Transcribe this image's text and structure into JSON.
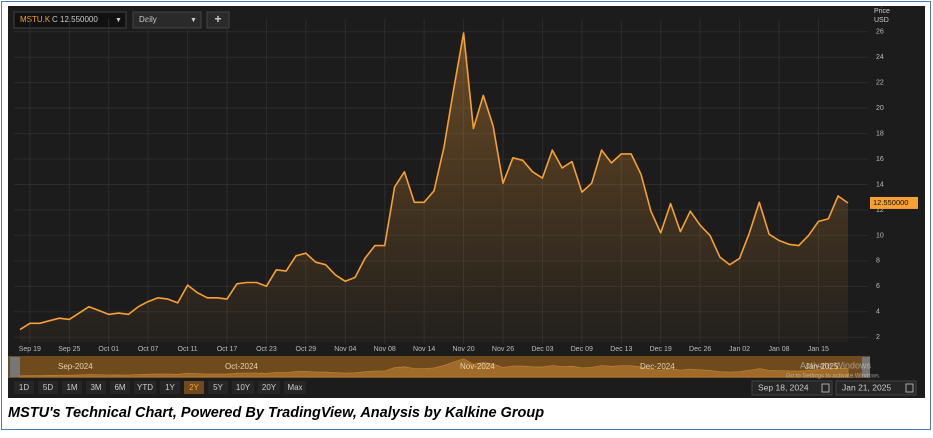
{
  "chart_data": {
    "type": "line",
    "categories": [
      null,
      "Sep 19",
      null,
      null,
      null,
      "Sep 25",
      null,
      null,
      null,
      "Oct 01",
      null,
      null,
      null,
      "Oct 07",
      null,
      null,
      null,
      "Oct 11",
      null,
      null,
      null,
      "Oct 17",
      null,
      null,
      null,
      "Oct 23",
      null,
      null,
      null,
      "Oct 29",
      null,
      null,
      null,
      "Nov 04",
      null,
      null,
      null,
      "Nov 08",
      null,
      null,
      null,
      "Nov 14",
      null,
      null,
      null,
      "Nov 20",
      null,
      null,
      null,
      "Nov 26",
      null,
      null,
      null,
      "Dec 03",
      null,
      null,
      null,
      "Dec 09",
      null,
      null,
      null,
      "Dec 13",
      null,
      null,
      null,
      "Dec 19",
      null,
      null,
      null,
      "Dec 26",
      null,
      null,
      null,
      "Jan 02",
      null,
      null,
      null,
      "Jan 08",
      null,
      null,
      null,
      "Jan 15",
      null,
      null,
      null
    ],
    "values": [
      2.6,
      3.1,
      3.1,
      3.3,
      3.5,
      3.4,
      3.9,
      4.4,
      4.1,
      3.8,
      3.9,
      3.8,
      4.4,
      4.8,
      5.1,
      5.0,
      4.7,
      6.1,
      5.5,
      5.1,
      5.1,
      5.0,
      6.2,
      6.3,
      6.3,
      6.0,
      7.3,
      7.2,
      8.4,
      8.6,
      7.9,
      7.7,
      6.9,
      6.4,
      6.7,
      8.2,
      9.2,
      9.2,
      13.8,
      15.0,
      12.6,
      12.6,
      13.5,
      16.9,
      21.5,
      25.9,
      18.4,
      21.0,
      18.6,
      14.1,
      16.1,
      15.9,
      15.0,
      14.5,
      16.7,
      15.3,
      15.8,
      13.4,
      14.1,
      16.7,
      15.7,
      16.4,
      16.4,
      14.8,
      11.9,
      10.2,
      12.5,
      10.3,
      11.9,
      10.8,
      10.0,
      8.3,
      7.7,
      8.2,
      10.2,
      12.6,
      10.1,
      9.6,
      9.3,
      9.2,
      10.0,
      11.1,
      11.3,
      13.1,
      12.55
    ],
    "last_value_label": "12.550000",
    "color": "#f7a033",
    "ylim": [
      1,
      27
    ],
    "yticks": [
      2,
      4,
      6,
      8,
      10,
      12,
      14,
      16,
      18,
      20,
      22,
      24,
      26
    ],
    "grid": true
  },
  "ui": {
    "symbol": "MSTU.K",
    "close": "C 12.550000",
    "interval": "Daily",
    "add": "+",
    "axis_title": "Price",
    "currency": "USD",
    "navigator_months": [
      "Sep-2024",
      "Oct-2024",
      "Nov-2024",
      "Dec-2024",
      "Jan-2025"
    ],
    "ranges": [
      "1D",
      "5D",
      "1M",
      "3M",
      "6M",
      "YTD",
      "1Y",
      "2Y",
      "5Y",
      "10Y",
      "20Y",
      "Max"
    ],
    "active_range": "2Y",
    "start_date": "Sep 18, 2024",
    "end_date": "Jan 21, 2025",
    "watermark": "Activate Windows",
    "watermark_sub": "Go to Settings to activate Windows.",
    "caption": "MSTU's Technical Chart, Powered By TradingView, Analysis by Kalkine Group"
  }
}
